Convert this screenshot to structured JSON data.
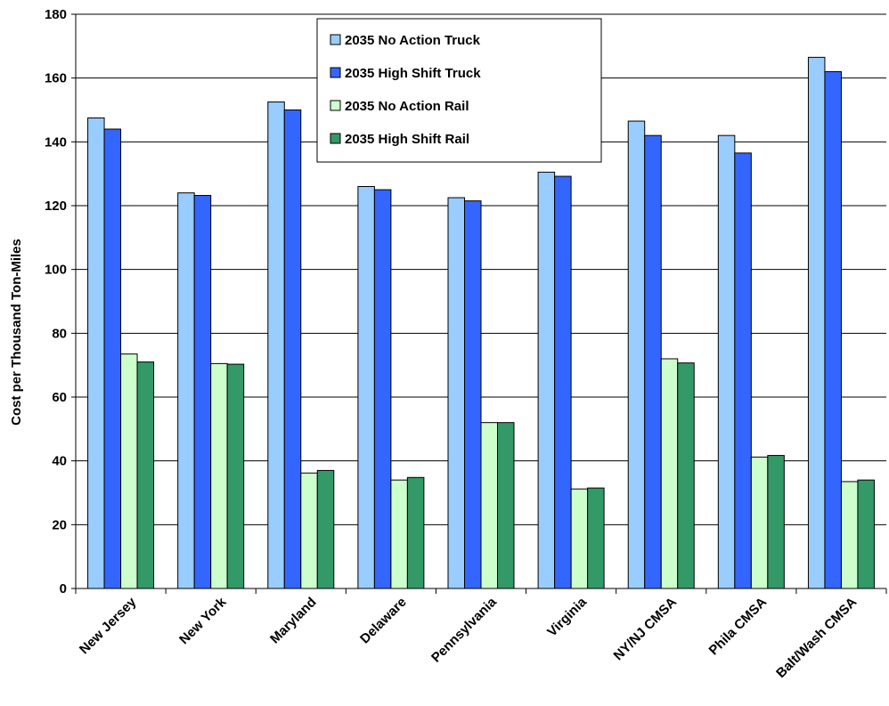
{
  "chart_data": {
    "type": "bar",
    "title": "",
    "xlabel": "",
    "ylabel": "Cost per Thousand Ton-Miles",
    "ylim": [
      0,
      180
    ],
    "yticks": [
      0,
      20,
      40,
      60,
      80,
      100,
      120,
      140,
      160,
      180
    ],
    "grid": true,
    "legend_position": "top-center",
    "categories": [
      "New Jersey",
      "New York",
      "Maryland",
      "Delaware",
      "Pennsylvania",
      "Virginia",
      "NY/NJ CMSA",
      "Phila CMSA",
      "Balt/Wash CMSA"
    ],
    "series": [
      {
        "name": "2035 No Action Truck",
        "color": "#99ccff",
        "values": [
          147.5,
          124,
          152.5,
          126,
          122.5,
          130.5,
          146.5,
          142,
          166.5
        ]
      },
      {
        "name": "2035 High Shift Truck",
        "color": "#3366ff",
        "values": [
          144,
          123.2,
          150,
          125,
          121.5,
          129.2,
          142,
          136.5,
          162
        ]
      },
      {
        "name": "2035 No Action Rail",
        "color": "#ccffcc",
        "values": [
          73.5,
          70.5,
          36.2,
          34,
          52,
          31.2,
          72,
          41.2,
          33.5
        ]
      },
      {
        "name": "2035 High Shift Rail",
        "color": "#339966",
        "values": [
          71,
          70.3,
          37,
          34.8,
          52,
          31.5,
          70.7,
          41.7,
          34
        ]
      }
    ]
  }
}
